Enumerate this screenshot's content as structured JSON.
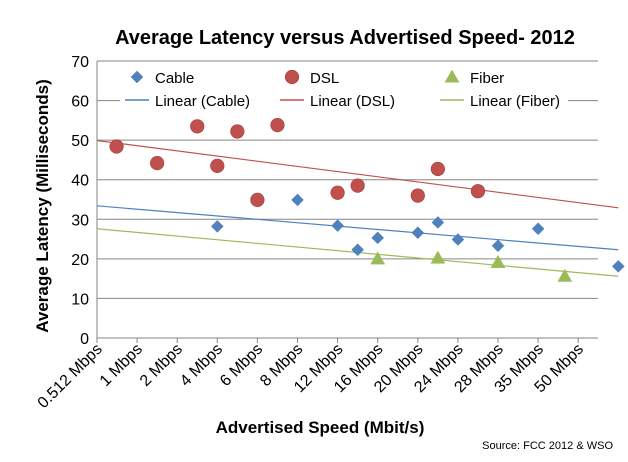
{
  "chart_data": {
    "type": "scatter",
    "title": "Average Latency versus Advertised Speed- 2012",
    "xlabel": "Advertised Speed (Mbit/s)",
    "ylabel": "Average Latency (Milliseconds)",
    "source": "Source: FCC 2012  & WSO",
    "categories": [
      "0.512 Mbps",
      "1 Mbps",
      "2 Mbps",
      "4 Mbps",
      "6 Mbps",
      "8 Mbps",
      "12 Mbps",
      "16 Mbps",
      "20 Mbps",
      "24 Mbps",
      "28 Mbps",
      "35 Mbps",
      "50 Mbps"
    ],
    "ylim": [
      0,
      70
    ],
    "yticks": [
      0,
      10,
      20,
      30,
      40,
      50,
      60,
      70
    ],
    "grid": "horizontal",
    "legend_position": "top",
    "series": [
      {
        "name": "Cable",
        "marker": "diamond",
        "color": "#4F81BD",
        "points": [
          {
            "x": 4.0,
            "y": 28.2
          },
          {
            "x": 8.0,
            "y": 34.9
          },
          {
            "x": 12.0,
            "y": 28.4
          },
          {
            "x": 14.0,
            "y": 22.3
          },
          {
            "x": 16.0,
            "y": 25.3
          },
          {
            "x": 20.0,
            "y": 26.6
          },
          {
            "x": 22.0,
            "y": 29.2
          },
          {
            "x": 24.0,
            "y": 24.9
          },
          {
            "x": 28.0,
            "y": 23.3
          },
          {
            "x": 35.0,
            "y": 27.6
          },
          {
            "x": 60.0,
            "y": 18.1
          }
        ]
      },
      {
        "name": "DSL",
        "marker": "circle",
        "color": "#C0504D",
        "points": [
          {
            "x": 0.75,
            "y": 48.4
          },
          {
            "x": 1.5,
            "y": 44.2
          },
          {
            "x": 3.0,
            "y": 53.5
          },
          {
            "x": 4.0,
            "y": 43.5
          },
          {
            "x": 5.0,
            "y": 52.2
          },
          {
            "x": 6.0,
            "y": 34.9
          },
          {
            "x": 7.0,
            "y": 53.8
          },
          {
            "x": 12.0,
            "y": 36.7
          },
          {
            "x": 14.0,
            "y": 38.5
          },
          {
            "x": 20.0,
            "y": 36.0
          },
          {
            "x": 22.0,
            "y": 42.7
          },
          {
            "x": 26.0,
            "y": 37.1
          }
        ]
      },
      {
        "name": "Fiber",
        "marker": "triangle",
        "color": "#9BBB59",
        "points": [
          {
            "x": 16.0,
            "y": 20.0
          },
          {
            "x": 22.0,
            "y": 20.2
          },
          {
            "x": 28.0,
            "y": 19.1
          },
          {
            "x": 45.0,
            "y": 15.6
          }
        ]
      }
    ],
    "trendlines": [
      {
        "name": "Linear (Cable)",
        "color": "#4F81BD",
        "start": {
          "x": 0.512,
          "y": 33.4
        },
        "end": {
          "x": 60.0,
          "y": 22.3
        }
      },
      {
        "name": "Linear (DSL)",
        "color": "#C0504D",
        "start": {
          "x": 0.512,
          "y": 49.9
        },
        "end": {
          "x": 60.0,
          "y": 32.9
        }
      },
      {
        "name": "Linear (Fiber)",
        "color": "#9BBB59",
        "start": {
          "x": 0.512,
          "y": 27.6
        },
        "end": {
          "x": 60.0,
          "y": 15.6
        }
      }
    ]
  }
}
